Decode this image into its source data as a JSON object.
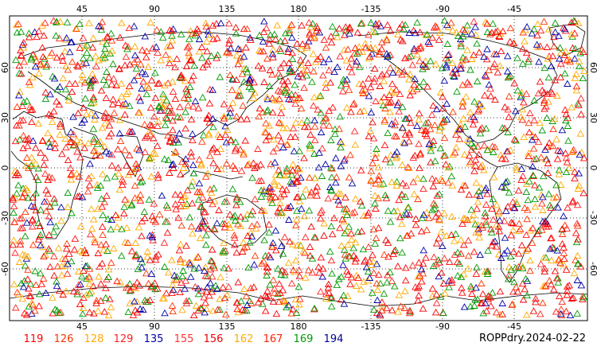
{
  "map": {
    "label": "ROPPdry.2024-02-22",
    "longitude_ticks": [
      "45",
      "90",
      "135",
      "180",
      "-135",
      "-90",
      "-45"
    ],
    "latitude_ticks": [
      "60",
      "30",
      "0",
      "-30",
      "-60"
    ],
    "projection": "cylindrical equidistant, centered near 180",
    "gridlines": "dotted",
    "marker": "open-triangle"
  },
  "legend": [
    {
      "label": "119",
      "color": "#ff0000"
    },
    {
      "label": "126",
      "color": "#ff3300"
    },
    {
      "label": "128",
      "color": "#ffaa00"
    },
    {
      "label": "129",
      "color": "#ff2222"
    },
    {
      "label": "135",
      "color": "#0000aa"
    },
    {
      "label": "155",
      "color": "#ff3333"
    },
    {
      "label": "156",
      "color": "#ee0000"
    },
    {
      "label": "162",
      "color": "#ffaa00"
    },
    {
      "label": "167",
      "color": "#ff2200"
    },
    {
      "label": "169",
      "color": "#009900"
    },
    {
      "label": "194",
      "color": "#000099"
    }
  ]
}
